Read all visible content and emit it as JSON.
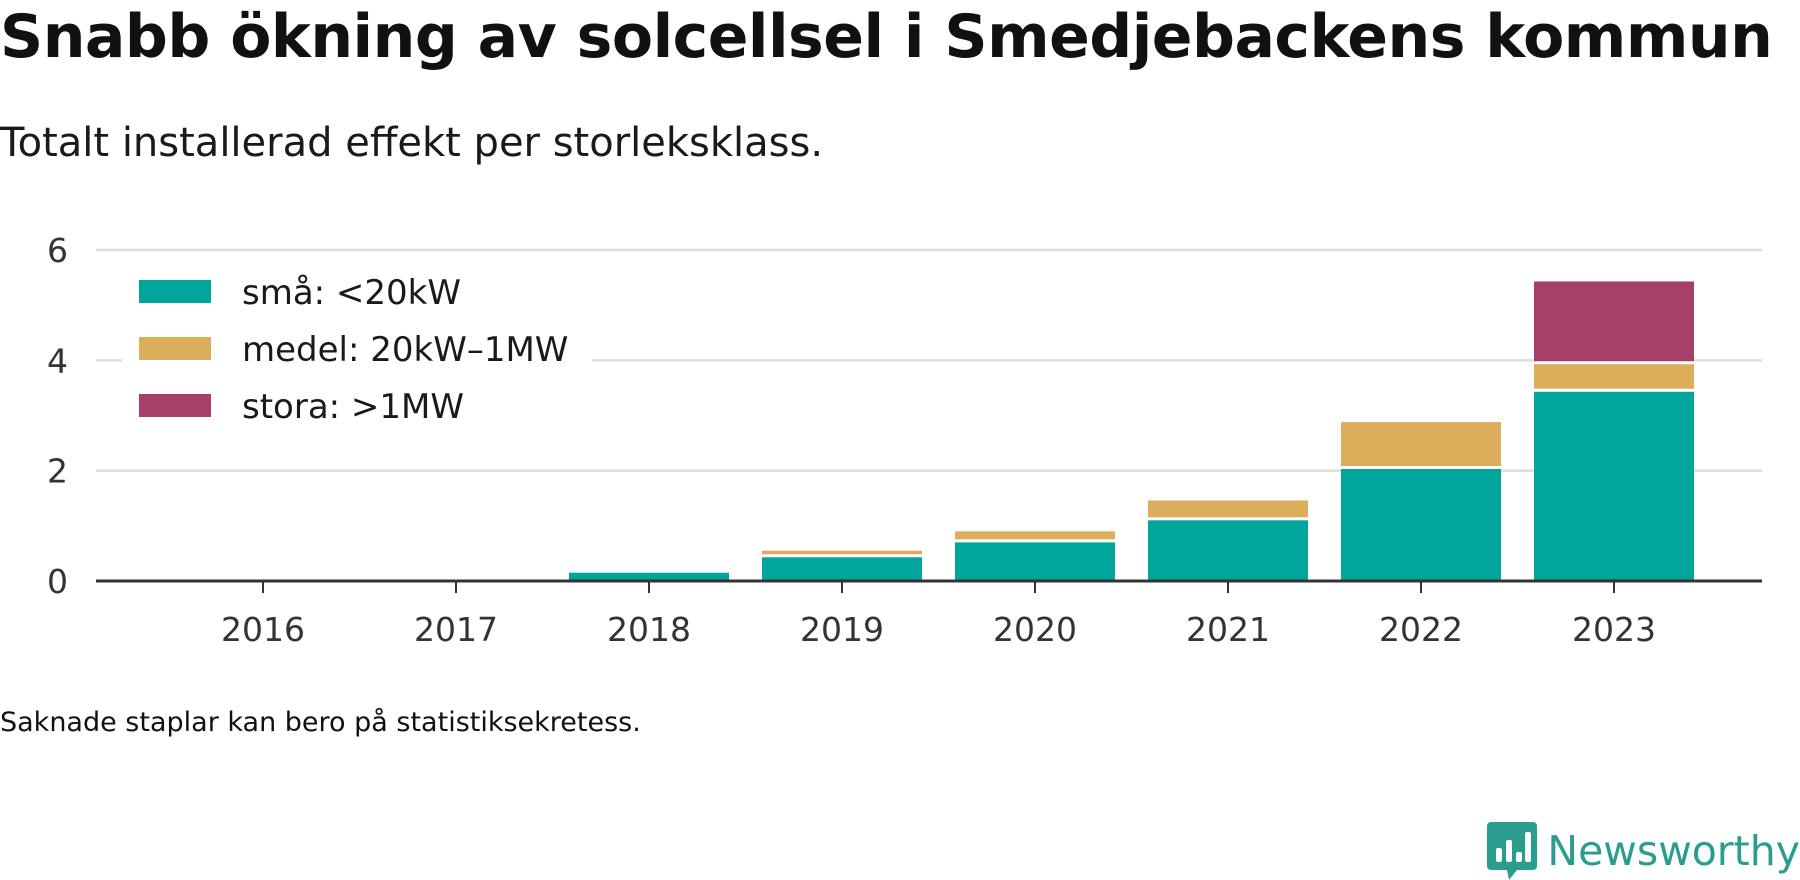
{
  "title": "Snabb ökning av solcellsel i Smedjebackens kommun",
  "subtitle": "Totalt installerad effekt per storleksklass.",
  "note": "Saknade staplar kan bero på statistiksekretess.",
  "brand": "Newsworthy",
  "colors": {
    "sma": "#00a59b",
    "medel": "#dcad5b",
    "stora": "#a64069",
    "grid": "#dddddd",
    "axis": "#333333",
    "brand": "#2a9d8f"
  },
  "chart_data": {
    "type": "bar",
    "stacked": true,
    "categories": [
      "2016",
      "2017",
      "2018",
      "2019",
      "2020",
      "2021",
      "2022",
      "2023"
    ],
    "series": [
      {
        "name": "små: <20kW",
        "color": "#00a59b",
        "values": [
          0,
          0,
          0.15,
          0.43,
          0.7,
          1.1,
          2.03,
          3.43
        ]
      },
      {
        "name": "medel: 20kW–1MW",
        "color": "#dcad5b",
        "values": [
          0,
          0,
          0,
          0.12,
          0.2,
          0.36,
          0.85,
          0.5
        ]
      },
      {
        "name": "stora: >1MW",
        "color": "#a64069",
        "values": [
          0,
          0,
          0,
          0,
          0,
          0,
          0,
          1.5
        ]
      }
    ],
    "yticks": [
      0,
      2,
      4,
      6
    ],
    "ylim": [
      0,
      6
    ],
    "grid": true,
    "legend_position": "top-left"
  }
}
